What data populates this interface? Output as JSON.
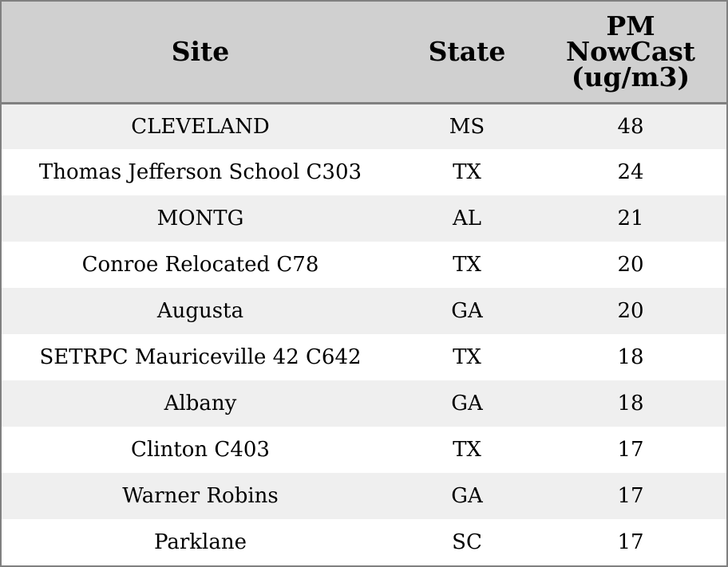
{
  "chart_data": {
    "type": "table",
    "columns": [
      "Site",
      "State",
      "PM NowCast (ug/m3)"
    ],
    "header_lines": {
      "site": "Site",
      "state": "State",
      "pm": [
        "PM",
        "NowCast",
        "(ug/m3)"
      ]
    },
    "rows": [
      {
        "site": "CLEVELAND",
        "state": "MS",
        "pm": 48
      },
      {
        "site": "Thomas Jefferson School C303",
        "state": "TX",
        "pm": 24
      },
      {
        "site": "MONTG",
        "state": "AL",
        "pm": 21
      },
      {
        "site": "Conroe Relocated C78",
        "state": "TX",
        "pm": 20
      },
      {
        "site": "Augusta",
        "state": "GA",
        "pm": 20
      },
      {
        "site": "SETRPC Mauriceville 42 C642",
        "state": "TX",
        "pm": 18
      },
      {
        "site": "Albany",
        "state": "GA",
        "pm": 18
      },
      {
        "site": "Clinton C403",
        "state": "TX",
        "pm": 17
      },
      {
        "site": "Warner Robins",
        "state": "GA",
        "pm": 17
      },
      {
        "site": "Parklane",
        "state": "SC",
        "pm": 17
      }
    ]
  },
  "colors": {
    "header_bg": "#d0d0d0",
    "row_alt_bg": "#efefef",
    "row_bg": "#ffffff",
    "border": "#808080"
  }
}
